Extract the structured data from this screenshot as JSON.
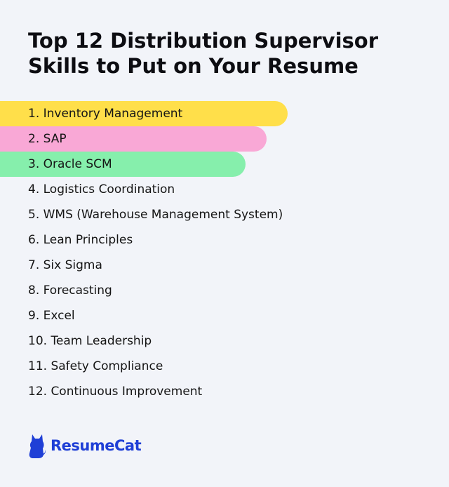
{
  "header": {
    "title_line1": "Top 12 Distribution Supervisor",
    "title_line2": "Skills to Put on Your Resume"
  },
  "skills": [
    {
      "label": "1. Inventory Management",
      "highlight": "#ffdf4a"
    },
    {
      "label": "2. SAP",
      "highlight": "#f9a8d6"
    },
    {
      "label": "3. Oracle SCM",
      "highlight": "#86efac"
    },
    {
      "label": "4. Logistics Coordination"
    },
    {
      "label": "5. WMS (Warehouse Management System)"
    },
    {
      "label": "6. Lean Principles"
    },
    {
      "label": "7. Six Sigma"
    },
    {
      "label": "8. Forecasting"
    },
    {
      "label": "9. Excel"
    },
    {
      "label": "10. Team Leadership"
    },
    {
      "label": "11. Safety Compliance"
    },
    {
      "label": "12. Continuous Improvement"
    }
  ],
  "brand": {
    "icon": "cat-icon",
    "name": "ResumeCat",
    "color": "#1f3fd6"
  }
}
